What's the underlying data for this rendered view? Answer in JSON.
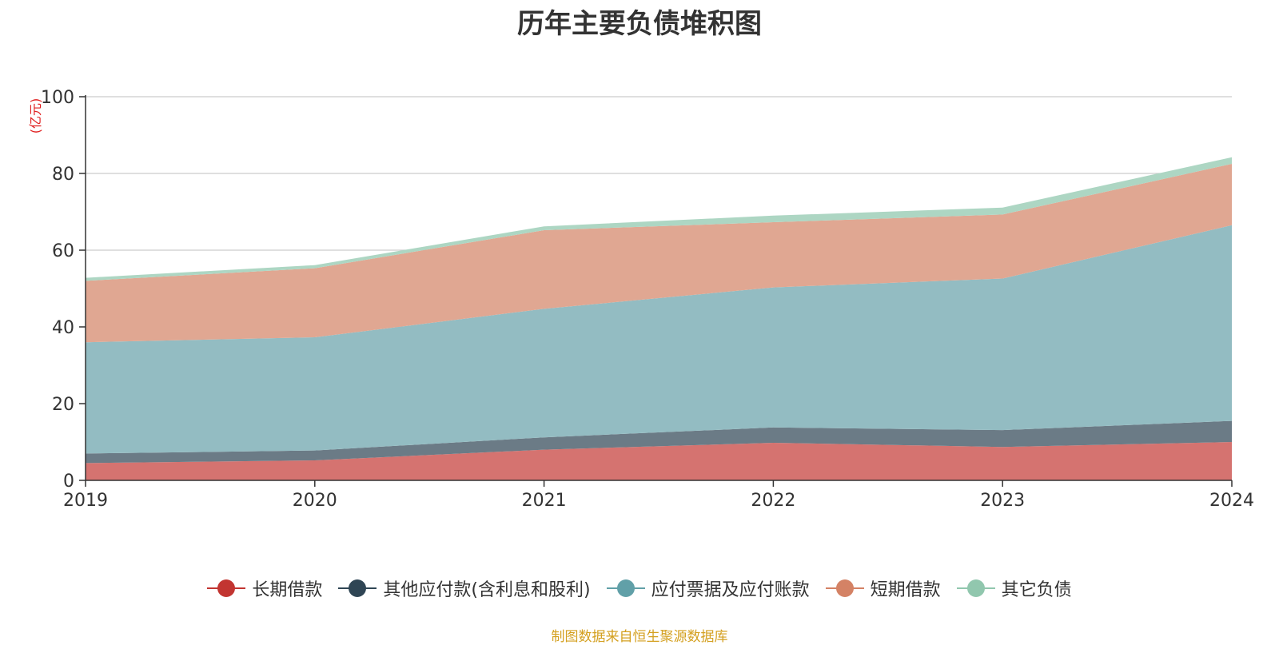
{
  "title": "历年主要负债堆积图",
  "footer": "制图数据来自恒生聚源数据库",
  "chart_data": {
    "type": "area",
    "stacked": true,
    "x": [
      "2019",
      "2020",
      "2021",
      "2022",
      "2023",
      "2024"
    ],
    "unit_label": "(亿元)",
    "ylim": [
      0,
      100
    ],
    "yticks": [
      "0",
      "20",
      "40",
      "60",
      "80",
      "100"
    ],
    "grid": true,
    "legend_position": "bottom",
    "series": [
      {
        "name": "长期借款",
        "color": "#c23531",
        "fill": "#d57370",
        "values": [
          4.5,
          5.2,
          8.0,
          9.8,
          8.7,
          10.0
        ]
      },
      {
        "name": "其他应付款(含利息和股利)",
        "color": "#2f4554",
        "fill": "#6b7b86",
        "values": [
          2.5,
          2.6,
          3.2,
          4.0,
          4.4,
          5.5
        ]
      },
      {
        "name": "应付票据及应付账款",
        "color": "#61a0a8",
        "fill": "#93bcc2",
        "values": [
          29.0,
          29.5,
          33.5,
          36.5,
          39.5,
          51.0
        ]
      },
      {
        "name": "短期借款",
        "color": "#d48265",
        "fill": "#e0a792",
        "values": [
          16.0,
          18.0,
          20.5,
          17.0,
          16.7,
          16.0
        ]
      },
      {
        "name": "其它负债",
        "color": "#91c7ae",
        "fill": "#add6c3",
        "values": [
          0.8,
          0.8,
          1.0,
          1.7,
          1.8,
          1.7
        ]
      }
    ]
  }
}
